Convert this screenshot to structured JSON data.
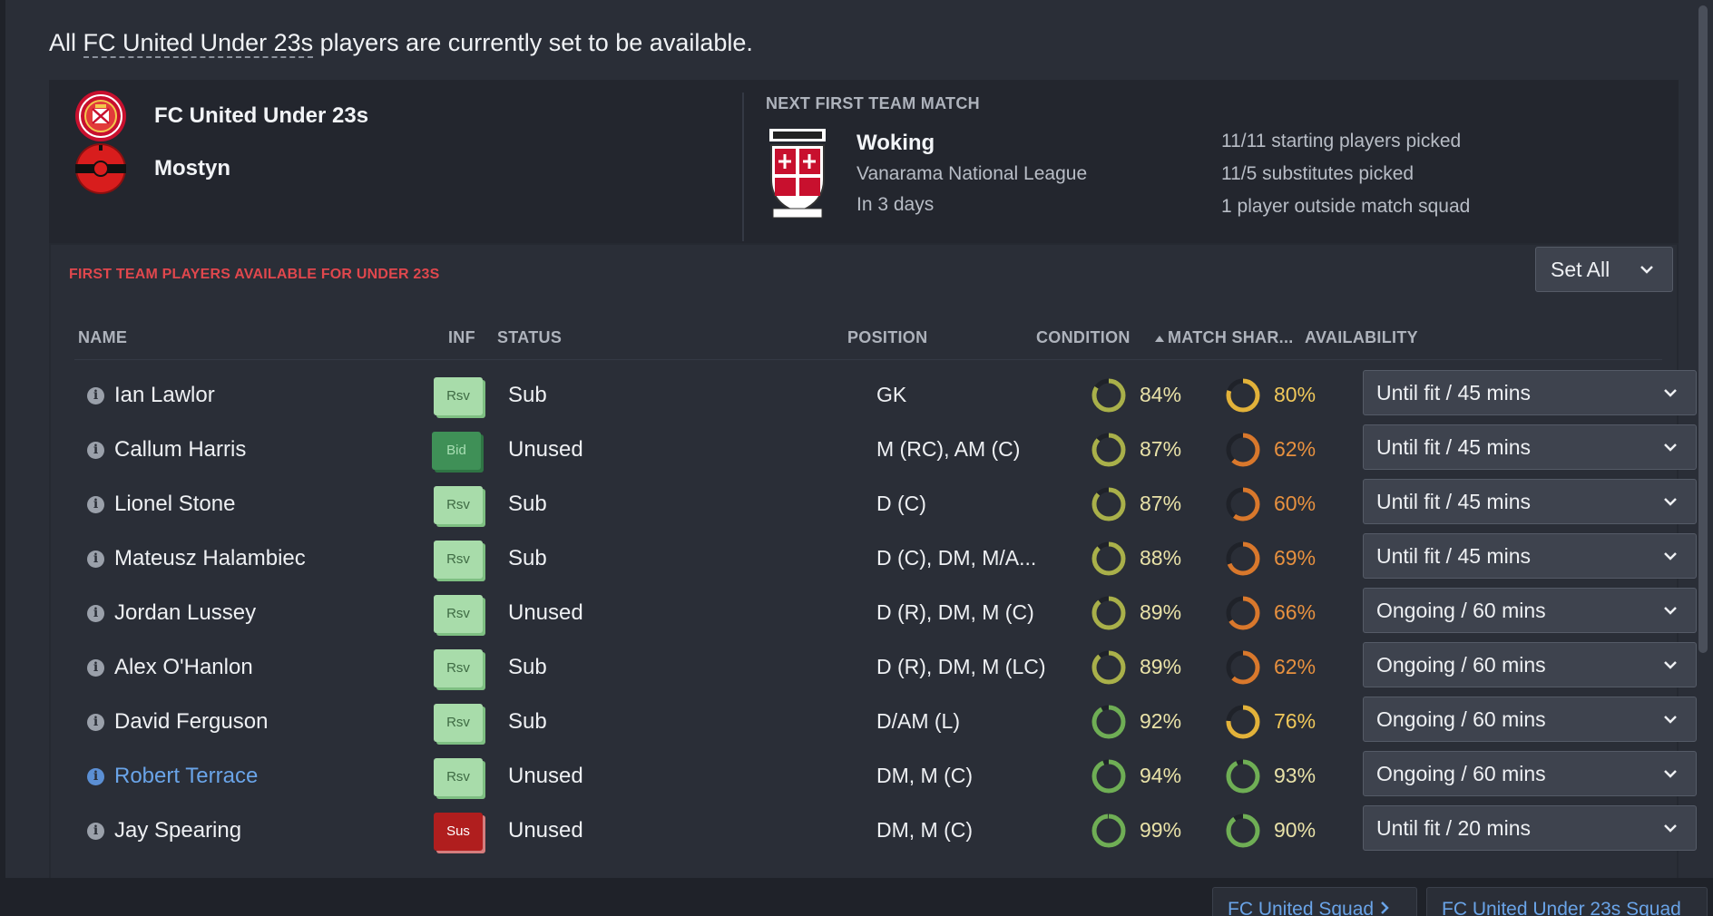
{
  "intro": {
    "prefix": "All ",
    "team_link": "FC United Under 23s",
    "suffix": " players are currently set to be available."
  },
  "clubs": [
    {
      "name": "FC United Under 23s",
      "crest_icon": "fc-united-crest-icon"
    },
    {
      "name": "Mostyn",
      "crest_icon": "mostyn-crest-icon"
    }
  ],
  "next_match": {
    "title": "NEXT FIRST TEAM MATCH",
    "opponent": "Woking",
    "competition": "Vanarama National League",
    "when": "In 3 days",
    "squad_info": [
      "11/11 starting players picked",
      "11/5 substitutes picked",
      "1 player outside match squad"
    ]
  },
  "section": {
    "title": "FIRST TEAM PLAYERS AVAILABLE FOR UNDER 23S",
    "set_all_label": "Set All"
  },
  "columns": {
    "name": "NAME",
    "inf": "INF",
    "status": "STATUS",
    "position": "POSITION",
    "condition": "CONDITION",
    "match_sharpness": "MATCH SHAR...",
    "availability": "AVAILABILITY"
  },
  "players": [
    {
      "name": "Ian Lawlor",
      "inf": "Rsv",
      "status": "Sub",
      "position": "GK",
      "condition": "84%",
      "condition_value": 84,
      "sharpness": "80%",
      "sharpness_value": 80,
      "availability": "Until fit / 45 mins",
      "highlight": false
    },
    {
      "name": "Callum Harris",
      "inf": "Bid",
      "status": "Unused",
      "position": "M (RC), AM (C)",
      "condition": "87%",
      "condition_value": 87,
      "sharpness": "62%",
      "sharpness_value": 62,
      "availability": "Until fit / 45 mins",
      "highlight": false
    },
    {
      "name": "Lionel Stone",
      "inf": "Rsv",
      "status": "Sub",
      "position": "D (C)",
      "condition": "87%",
      "condition_value": 87,
      "sharpness": "60%",
      "sharpness_value": 60,
      "availability": "Until fit / 45 mins",
      "highlight": false
    },
    {
      "name": "Mateusz Halambiec",
      "inf": "Rsv",
      "status": "Sub",
      "position": "D (C), DM, M/A...",
      "condition": "88%",
      "condition_value": 88,
      "sharpness": "69%",
      "sharpness_value": 69,
      "availability": "Until fit / 45 mins",
      "highlight": false
    },
    {
      "name": "Jordan Lussey",
      "inf": "Rsv",
      "status": "Unused",
      "position": "D (R), DM, M (C)",
      "condition": "89%",
      "condition_value": 89,
      "sharpness": "66%",
      "sharpness_value": 66,
      "availability": "Ongoing / 60 mins",
      "highlight": false
    },
    {
      "name": "Alex O'Hanlon",
      "inf": "Rsv",
      "status": "Sub",
      "position": "D (R), DM, M (LC)",
      "condition": "89%",
      "condition_value": 89,
      "sharpness": "62%",
      "sharpness_value": 62,
      "availability": "Ongoing / 60 mins",
      "highlight": false
    },
    {
      "name": "David Ferguson",
      "inf": "Rsv",
      "status": "Sub",
      "position": "D/AM (L)",
      "condition": "92%",
      "condition_value": 92,
      "sharpness": "76%",
      "sharpness_value": 76,
      "availability": "Ongoing / 60 mins",
      "highlight": false
    },
    {
      "name": "Robert Terrace",
      "inf": "Rsv",
      "status": "Unused",
      "position": "DM, M (C)",
      "condition": "94%",
      "condition_value": 94,
      "sharpness": "93%",
      "sharpness_value": 93,
      "availability": "Ongoing / 60 mins",
      "highlight": true
    },
    {
      "name": "Jay Spearing",
      "inf": "Sus",
      "status": "Unused",
      "position": "DM, M (C)",
      "condition": "99%",
      "condition_value": 99,
      "sharpness": "90%",
      "sharpness_value": 90,
      "availability": "Until fit / 20 mins",
      "highlight": false
    }
  ],
  "bottom_nav": [
    "FC United Squad",
    "FC United Under 23s Squad"
  ],
  "colors": {
    "accent_red": "#e0474d",
    "link_blue": "#6aa4e8",
    "ring_green": "#6fae55",
    "ring_olive": "#a9b04a",
    "ring_yellow": "#e2b23a",
    "ring_orange": "#d9782c"
  }
}
